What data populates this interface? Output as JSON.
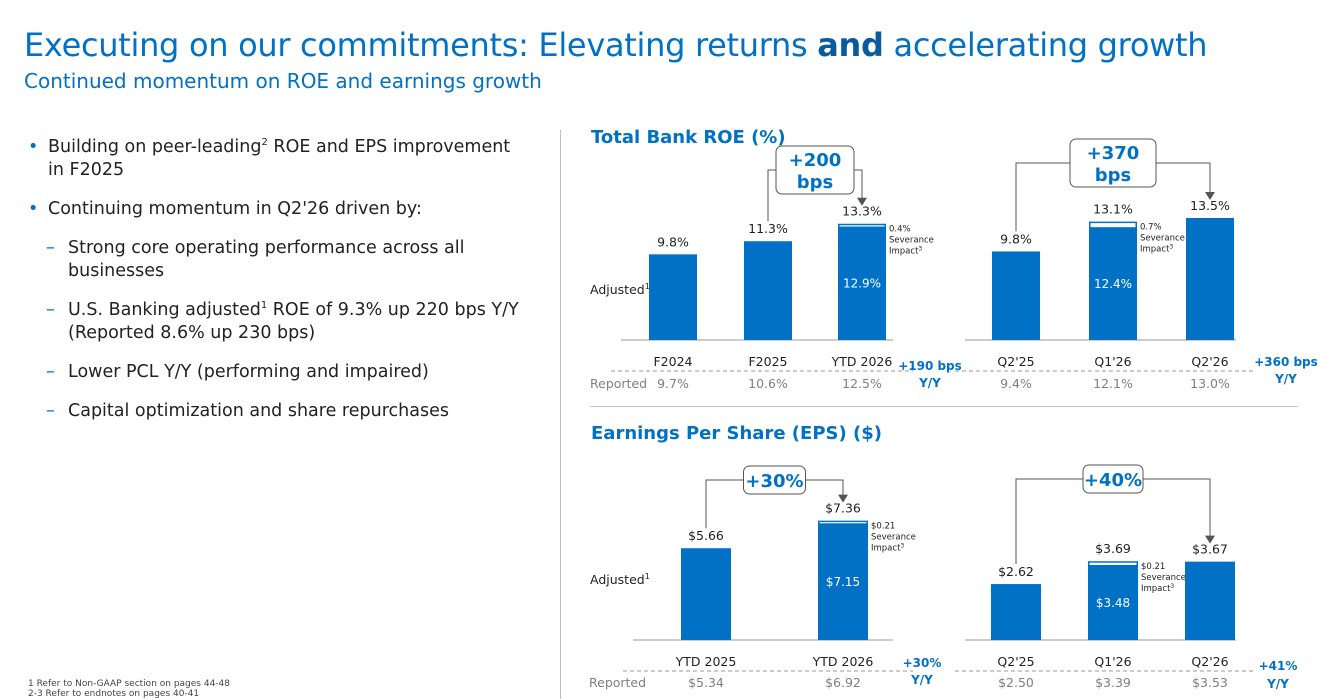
{
  "title": {
    "part1": "Executing on our commitments: Elevating returns ",
    "bold": "and",
    "part2": " accelerating growth"
  },
  "subtitle": "Continued momentum on ROE and earnings growth",
  "bullets": {
    "b1_pre": "Building on peer-leading",
    "b1_sup": "2",
    "b1_post": " ROE and EPS improvement in F2025",
    "b2": "Continuing momentum in Q2'26 driven by:",
    "s1": "Strong core operating performance across all businesses",
    "s2_pre": "U.S. Banking adjusted",
    "s2_sup": "1",
    "s2_post": " ROE of 9.3% up 220 bps Y/Y (Reported 8.6% up 230 bps)",
    "s3": "Lower PCL Y/Y (performing and impaired)",
    "s4": "Capital optimization and share repurchases"
  },
  "roe_title": "Total Bank ROE (%)",
  "eps_title": "Earnings Per Share (EPS) ($)",
  "footnotes": {
    "f1": "1    Refer to Non-GAAP section on pages 44-48",
    "f2": "2-3  Refer to endnotes on pages 40-41"
  },
  "colors": {
    "bar": "#0071c5",
    "text_blue": "#0071c5",
    "muted": "#7f7f7f"
  },
  "chart_data": [
    {
      "type": "bar",
      "title": "Total Bank ROE (%)",
      "panel": "annual",
      "categories": [
        "F2024",
        "F2025",
        "YTD 2026"
      ],
      "series": [
        {
          "name": "Adjusted",
          "values": [
            9.8,
            11.3,
            13.3
          ]
        }
      ],
      "inner_values": [
        null,
        null,
        12.9
      ],
      "inner_labels": [
        "",
        "",
        "12.9%"
      ],
      "value_labels": [
        "9.8%",
        "11.3%",
        "13.3%"
      ],
      "severance": {
        "index": 2,
        "value": 0.4,
        "label": "0.4%",
        "line1": "Severance",
        "line2": "Impact",
        "sup": "3"
      },
      "reported": {
        "label": "Reported",
        "values": [
          "9.7%",
          "10.6%",
          "12.5%"
        ]
      },
      "callout": {
        "line1": "+200",
        "line2": "bps",
        "from": 1,
        "to": 2
      },
      "yy": {
        "line1": "+190 bps",
        "line2": "Y/Y"
      },
      "series_label": "Adjusted",
      "series_label_sup": "1",
      "ylim": [
        0,
        13.5
      ]
    },
    {
      "type": "bar",
      "title": "Total Bank ROE (%)",
      "panel": "quarterly",
      "categories": [
        "Q2'25",
        "Q1'26",
        "Q2'26"
      ],
      "series": [
        {
          "name": "Adjusted",
          "values": [
            9.8,
            13.1,
            13.5
          ]
        }
      ],
      "inner_values": [
        null,
        12.4,
        null
      ],
      "inner_labels": [
        "",
        "12.4%",
        ""
      ],
      "value_labels": [
        "9.8%",
        "13.1%",
        "13.5%"
      ],
      "severance": {
        "index": 1,
        "value": 0.7,
        "label": "0.7%",
        "line1": "Severance",
        "line2": "Impact",
        "sup": "3"
      },
      "reported": {
        "values": [
          "9.4%",
          "12.1%",
          "13.0%"
        ]
      },
      "callout": {
        "line1": "+370",
        "line2": "bps",
        "from": 0,
        "to": 2
      },
      "yy": {
        "line1": "+360 bps",
        "line2": "Y/Y"
      },
      "ylim": [
        0,
        13.5
      ]
    },
    {
      "type": "bar",
      "title": "Earnings Per Share (EPS) ($)",
      "panel": "annual",
      "categories": [
        "YTD 2025",
        "YTD 2026"
      ],
      "series": [
        {
          "name": "Adjusted",
          "values": [
            5.66,
            7.36
          ]
        }
      ],
      "inner_values": [
        null,
        7.15
      ],
      "inner_labels": [
        "",
        "$7.15"
      ],
      "value_labels": [
        "$5.66",
        "$7.36"
      ],
      "severance": {
        "index": 1,
        "value": 0.21,
        "label": "$0.21",
        "line1": "Severance",
        "line2": "Impact",
        "sup": "3"
      },
      "reported": {
        "label": "Reported",
        "values": [
          "$5.34",
          "$6.92"
        ]
      },
      "callout": {
        "line1": "+30%",
        "from": 0,
        "to": 1
      },
      "yy": {
        "line1": "+30%",
        "line2": "Y/Y"
      },
      "series_label": "Adjusted",
      "series_label_sup": "1",
      "ylim": [
        0,
        7.4
      ]
    },
    {
      "type": "bar",
      "title": "Earnings Per Share (EPS) ($)",
      "panel": "quarterly",
      "categories": [
        "Q2'25",
        "Q1'26",
        "Q2'26"
      ],
      "series": [
        {
          "name": "Adjusted",
          "values": [
            2.62,
            3.69,
            3.67
          ]
        }
      ],
      "inner_values": [
        null,
        3.48,
        null
      ],
      "inner_labels": [
        "",
        "$3.48",
        ""
      ],
      "value_labels": [
        "$2.62",
        "$3.69",
        "$3.67"
      ],
      "severance": {
        "index": 1,
        "value": 0.21,
        "label": "$0.21",
        "line1": "Severance",
        "line2": "Impact",
        "sup": "3"
      },
      "reported": {
        "values": [
          "$2.50",
          "$3.39",
          "$3.53"
        ]
      },
      "callout": {
        "line1": "+40%",
        "from": 0,
        "to": 2
      },
      "yy": {
        "line1": "+41%",
        "line2": "Y/Y"
      },
      "ylim": [
        0,
        3.7
      ]
    }
  ]
}
